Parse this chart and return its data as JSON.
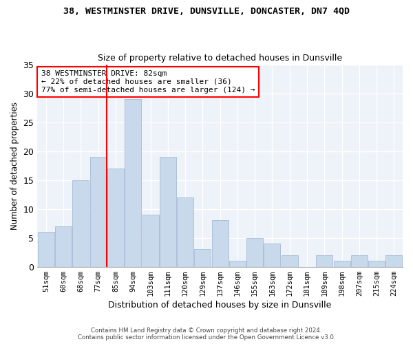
{
  "title1": "38, WESTMINSTER DRIVE, DUNSVILLE, DONCASTER, DN7 4QD",
  "title2": "Size of property relative to detached houses in Dunsville",
  "xlabel": "Distribution of detached houses by size in Dunsville",
  "ylabel": "Number of detached properties",
  "categories": [
    "51sqm",
    "60sqm",
    "68sqm",
    "77sqm",
    "85sqm",
    "94sqm",
    "103sqm",
    "111sqm",
    "120sqm",
    "129sqm",
    "137sqm",
    "146sqm",
    "155sqm",
    "163sqm",
    "172sqm",
    "181sqm",
    "189sqm",
    "198sqm",
    "207sqm",
    "215sqm",
    "224sqm"
  ],
  "values": [
    6,
    7,
    15,
    19,
    17,
    29,
    9,
    19,
    12,
    3,
    8,
    1,
    5,
    4,
    2,
    0,
    2,
    1,
    2,
    1,
    2
  ],
  "bar_color": "#c8d9ec",
  "bar_edge_color": "#9ab4d0",
  "red_line_index": 3.5,
  "annotation_text": "38 WESTMINSTER DRIVE: 82sqm\n← 22% of detached houses are smaller (36)\n77% of semi-detached houses are larger (124) →",
  "annotation_box_color": "white",
  "annotation_box_edge_color": "red",
  "red_line_color": "red",
  "ylim": [
    0,
    35
  ],
  "yticks": [
    0,
    5,
    10,
    15,
    20,
    25,
    30,
    35
  ],
  "footer1": "Contains HM Land Registry data © Crown copyright and database right 2024.",
  "footer2": "Contains public sector information licensed under the Open Government Licence v3.0.",
  "bg_color": "#eef2f9",
  "grid_color": "white"
}
